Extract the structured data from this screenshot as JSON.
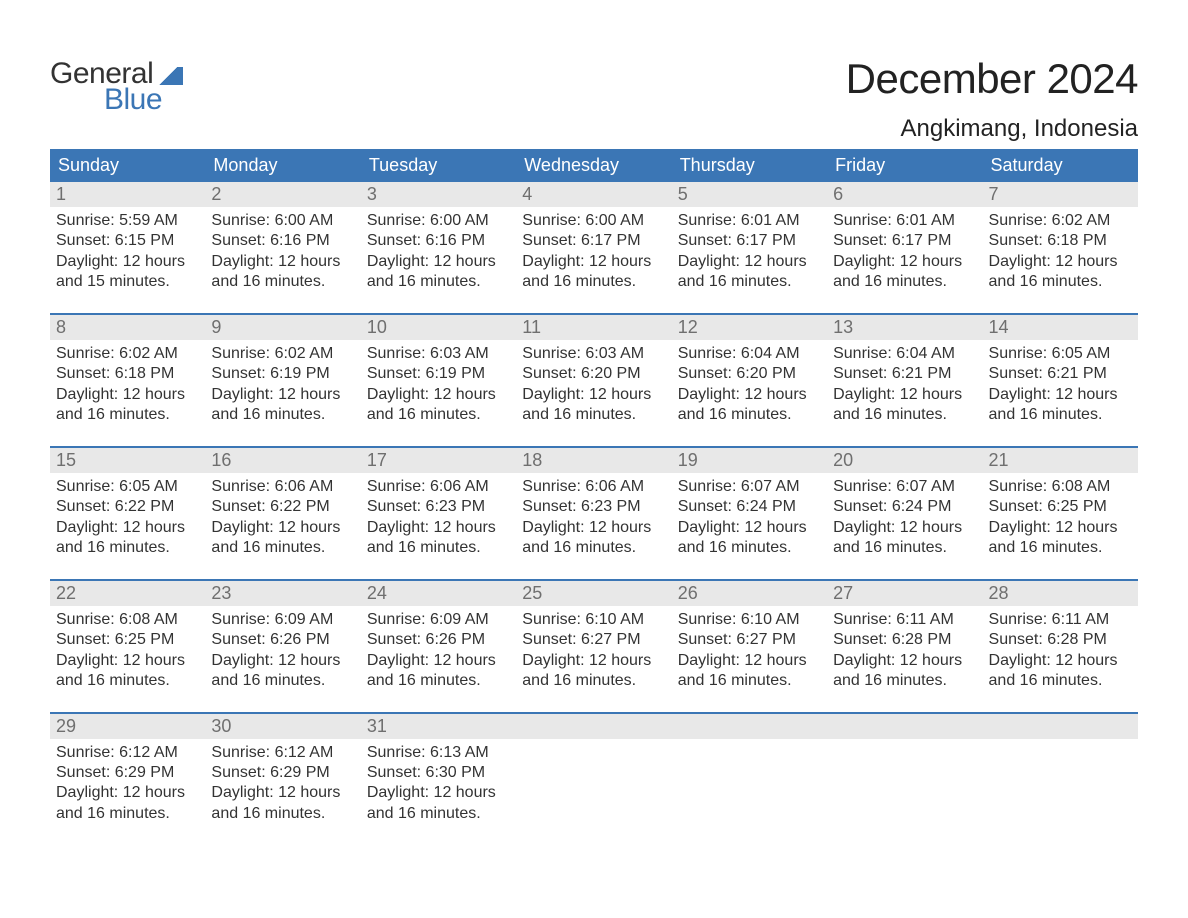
{
  "logo": {
    "word1": "General",
    "word2": "Blue"
  },
  "title": "December 2024",
  "subtitle": "Angkimang, Indonesia",
  "colors": {
    "header_bg": "#3b76b5",
    "header_fg": "#ffffff",
    "daynum_bg": "#e8e8e8",
    "daynum_fg": "#6f6f6f",
    "text": "#333333",
    "page_bg": "#ffffff",
    "logo_blue": "#3b76b5"
  },
  "typography": {
    "title_fontsize": 42,
    "subtitle_fontsize": 24,
    "dayhead_fontsize": 18,
    "daynum_fontsize": 18,
    "body_fontsize": 16,
    "logo_fontsize": 30
  },
  "layout": {
    "columns": 7,
    "rows": 5,
    "week_border_color": "#3b76b5",
    "week_border_width": 2
  },
  "dayNames": [
    "Sunday",
    "Monday",
    "Tuesday",
    "Wednesday",
    "Thursday",
    "Friday",
    "Saturday"
  ],
  "labels": {
    "sunrise": "Sunrise:",
    "sunset": "Sunset:",
    "daylight": "Daylight:"
  },
  "days": [
    {
      "n": 1,
      "sunrise": "5:59 AM",
      "sunset": "6:15 PM",
      "daylight": "12 hours and 15 minutes."
    },
    {
      "n": 2,
      "sunrise": "6:00 AM",
      "sunset": "6:16 PM",
      "daylight": "12 hours and 16 minutes."
    },
    {
      "n": 3,
      "sunrise": "6:00 AM",
      "sunset": "6:16 PM",
      "daylight": "12 hours and 16 minutes."
    },
    {
      "n": 4,
      "sunrise": "6:00 AM",
      "sunset": "6:17 PM",
      "daylight": "12 hours and 16 minutes."
    },
    {
      "n": 5,
      "sunrise": "6:01 AM",
      "sunset": "6:17 PM",
      "daylight": "12 hours and 16 minutes."
    },
    {
      "n": 6,
      "sunrise": "6:01 AM",
      "sunset": "6:17 PM",
      "daylight": "12 hours and 16 minutes."
    },
    {
      "n": 7,
      "sunrise": "6:02 AM",
      "sunset": "6:18 PM",
      "daylight": "12 hours and 16 minutes."
    },
    {
      "n": 8,
      "sunrise": "6:02 AM",
      "sunset": "6:18 PM",
      "daylight": "12 hours and 16 minutes."
    },
    {
      "n": 9,
      "sunrise": "6:02 AM",
      "sunset": "6:19 PM",
      "daylight": "12 hours and 16 minutes."
    },
    {
      "n": 10,
      "sunrise": "6:03 AM",
      "sunset": "6:19 PM",
      "daylight": "12 hours and 16 minutes."
    },
    {
      "n": 11,
      "sunrise": "6:03 AM",
      "sunset": "6:20 PM",
      "daylight": "12 hours and 16 minutes."
    },
    {
      "n": 12,
      "sunrise": "6:04 AM",
      "sunset": "6:20 PM",
      "daylight": "12 hours and 16 minutes."
    },
    {
      "n": 13,
      "sunrise": "6:04 AM",
      "sunset": "6:21 PM",
      "daylight": "12 hours and 16 minutes."
    },
    {
      "n": 14,
      "sunrise": "6:05 AM",
      "sunset": "6:21 PM",
      "daylight": "12 hours and 16 minutes."
    },
    {
      "n": 15,
      "sunrise": "6:05 AM",
      "sunset": "6:22 PM",
      "daylight": "12 hours and 16 minutes."
    },
    {
      "n": 16,
      "sunrise": "6:06 AM",
      "sunset": "6:22 PM",
      "daylight": "12 hours and 16 minutes."
    },
    {
      "n": 17,
      "sunrise": "6:06 AM",
      "sunset": "6:23 PM",
      "daylight": "12 hours and 16 minutes."
    },
    {
      "n": 18,
      "sunrise": "6:06 AM",
      "sunset": "6:23 PM",
      "daylight": "12 hours and 16 minutes."
    },
    {
      "n": 19,
      "sunrise": "6:07 AM",
      "sunset": "6:24 PM",
      "daylight": "12 hours and 16 minutes."
    },
    {
      "n": 20,
      "sunrise": "6:07 AM",
      "sunset": "6:24 PM",
      "daylight": "12 hours and 16 minutes."
    },
    {
      "n": 21,
      "sunrise": "6:08 AM",
      "sunset": "6:25 PM",
      "daylight": "12 hours and 16 minutes."
    },
    {
      "n": 22,
      "sunrise": "6:08 AM",
      "sunset": "6:25 PM",
      "daylight": "12 hours and 16 minutes."
    },
    {
      "n": 23,
      "sunrise": "6:09 AM",
      "sunset": "6:26 PM",
      "daylight": "12 hours and 16 minutes."
    },
    {
      "n": 24,
      "sunrise": "6:09 AM",
      "sunset": "6:26 PM",
      "daylight": "12 hours and 16 minutes."
    },
    {
      "n": 25,
      "sunrise": "6:10 AM",
      "sunset": "6:27 PM",
      "daylight": "12 hours and 16 minutes."
    },
    {
      "n": 26,
      "sunrise": "6:10 AM",
      "sunset": "6:27 PM",
      "daylight": "12 hours and 16 minutes."
    },
    {
      "n": 27,
      "sunrise": "6:11 AM",
      "sunset": "6:28 PM",
      "daylight": "12 hours and 16 minutes."
    },
    {
      "n": 28,
      "sunrise": "6:11 AM",
      "sunset": "6:28 PM",
      "daylight": "12 hours and 16 minutes."
    },
    {
      "n": 29,
      "sunrise": "6:12 AM",
      "sunset": "6:29 PM",
      "daylight": "12 hours and 16 minutes."
    },
    {
      "n": 30,
      "sunrise": "6:12 AM",
      "sunset": "6:29 PM",
      "daylight": "12 hours and 16 minutes."
    },
    {
      "n": 31,
      "sunrise": "6:13 AM",
      "sunset": "6:30 PM",
      "daylight": "12 hours and 16 minutes."
    }
  ],
  "startWeekday": 0,
  "trailingEmpty": 4
}
